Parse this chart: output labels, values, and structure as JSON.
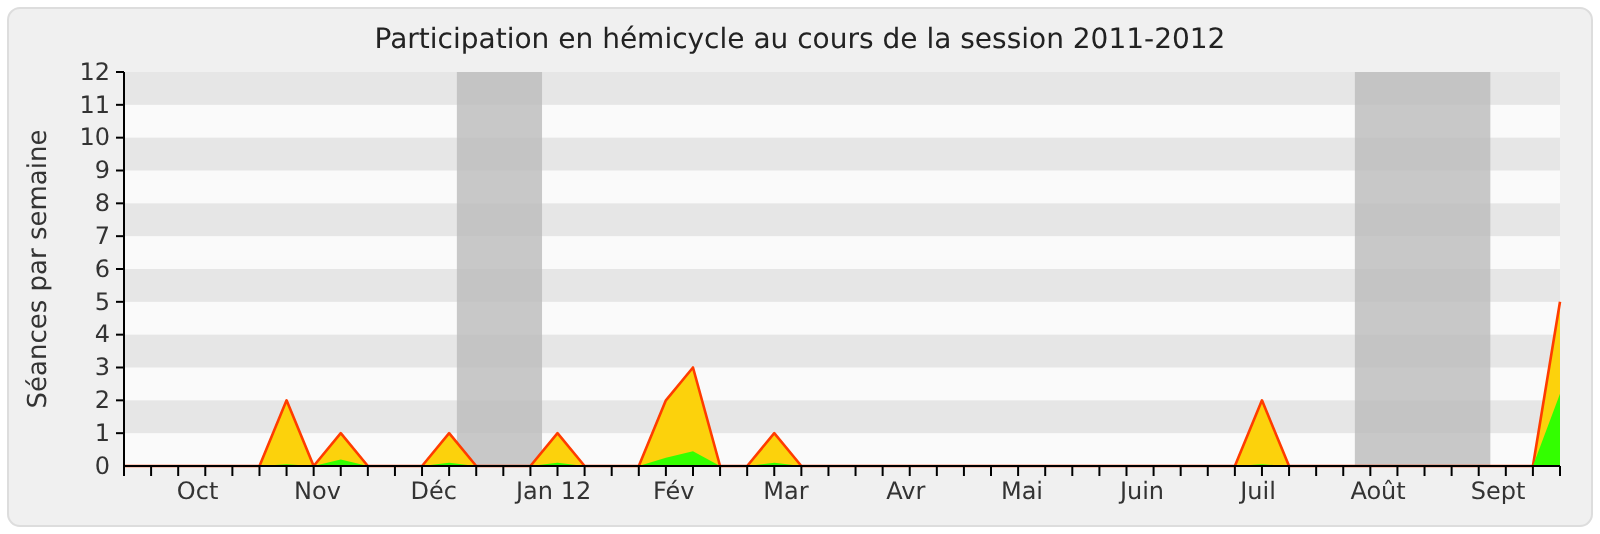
{
  "chart_data": {
    "type": "area",
    "title": "Participation en hémicycle au cours de la session 2011-2012",
    "ylabel": "Séances par semaine",
    "x": [
      "2011-09-26",
      "2011-10-03",
      "2011-10-10",
      "2011-10-17",
      "2011-10-24",
      "2011-10-31",
      "2011-11-07",
      "2011-11-14",
      "2011-11-21",
      "2011-11-28",
      "2011-12-05",
      "2011-12-12",
      "2011-12-19",
      "2011-12-26",
      "2012-01-02",
      "2012-01-09",
      "2012-01-16",
      "2012-01-23",
      "2012-01-30",
      "2012-02-06",
      "2012-02-13",
      "2012-02-20",
      "2012-02-27",
      "2012-03-05",
      "2012-03-12",
      "2012-03-19",
      "2012-03-26",
      "2012-04-02",
      "2012-04-09",
      "2012-04-16",
      "2012-04-23",
      "2012-04-30",
      "2012-05-07",
      "2012-05-14",
      "2012-05-21",
      "2012-05-28",
      "2012-06-04",
      "2012-06-11",
      "2012-06-18",
      "2012-06-25",
      "2012-07-02",
      "2012-07-09",
      "2012-07-16",
      "2012-07-23",
      "2012-07-30",
      "2012-08-06",
      "2012-08-13",
      "2012-08-20",
      "2012-08-27",
      "2012-09-03",
      "2012-09-10",
      "2012-09-17",
      "2012-09-24",
      "2012-10-01"
    ],
    "series": [
      {
        "type": "area",
        "color": "#fcd20c",
        "values": [
          0,
          0,
          0,
          0,
          0,
          0,
          2,
          0,
          1,
          0,
          0,
          0,
          1,
          0,
          0,
          0,
          1,
          0,
          0,
          0,
          2,
          3,
          0,
          0,
          1,
          0,
          0,
          0,
          0,
          0,
          0,
          0,
          0,
          0,
          0,
          0,
          0,
          0,
          0,
          0,
          0,
          0,
          2,
          0,
          0,
          0,
          0,
          0,
          0,
          0,
          0,
          0,
          0,
          5
        ]
      },
      {
        "type": "area",
        "color": "#33ff00",
        "values": [
          0,
          0,
          0,
          0,
          0,
          0,
          0.05,
          0,
          0.2,
          0,
          0,
          0,
          0.1,
          0,
          0,
          0,
          0.1,
          0,
          0,
          0,
          0.25,
          0.45,
          0,
          0,
          0.1,
          0,
          0,
          0,
          0,
          0,
          0,
          0,
          0,
          0,
          0,
          0,
          0,
          0,
          0,
          0,
          0,
          0,
          0.05,
          0,
          0,
          0,
          0,
          0,
          0,
          0,
          0,
          0,
          0,
          2.2
        ]
      }
    ],
    "xlim": [
      "2011-09-26",
      "2012-10-01"
    ],
    "xticks": [
      {
        "value": "2011-10-15",
        "label": "Oct"
      },
      {
        "value": "2011-11-15",
        "label": "Nov"
      },
      {
        "value": "2011-12-15",
        "label": "Déc"
      },
      {
        "value": "2012-01-15",
        "label": "Jan 12"
      },
      {
        "value": "2012-02-15",
        "label": "Fév"
      },
      {
        "value": "2012-03-15",
        "label": "Mar"
      },
      {
        "value": "2012-04-15",
        "label": "Avr"
      },
      {
        "value": "2012-05-15",
        "label": "Mai"
      },
      {
        "value": "2012-06-15",
        "label": "Juin"
      },
      {
        "value": "2012-07-15",
        "label": "Juil"
      },
      {
        "value": "2012-08-15",
        "label": "Août"
      },
      {
        "value": "2012-09-15",
        "label": "Sept"
      },
      {
        "value": "2011-09-26",
        "label": null
      },
      {
        "value": "2011-10-03",
        "label": null
      },
      {
        "value": "2011-10-10",
        "label": null
      },
      {
        "value": "2011-10-17",
        "label": null
      },
      {
        "value": "2011-10-24",
        "label": null
      },
      {
        "value": "2011-10-31",
        "label": null
      },
      {
        "value": "2011-11-07",
        "label": null
      },
      {
        "value": "2011-11-14",
        "label": null
      },
      {
        "value": "2011-11-21",
        "label": null
      },
      {
        "value": "2011-11-28",
        "label": null
      },
      {
        "value": "2011-12-05",
        "label": null
      },
      {
        "value": "2011-12-12",
        "label": null
      },
      {
        "value": "2011-12-19",
        "label": null
      },
      {
        "value": "2011-12-26",
        "label": null
      },
      {
        "value": "2012-01-02",
        "label": null
      },
      {
        "value": "2012-01-09",
        "label": null
      },
      {
        "value": "2012-01-16",
        "label": null
      },
      {
        "value": "2012-01-23",
        "label": null
      },
      {
        "value": "2012-01-30",
        "label": null
      },
      {
        "value": "2012-02-06",
        "label": null
      },
      {
        "value": "2012-02-13",
        "label": null
      },
      {
        "value": "2012-02-20",
        "label": null
      },
      {
        "value": "2012-02-27",
        "label": null
      },
      {
        "value": "2012-03-05",
        "label": null
      },
      {
        "value": "2012-03-12",
        "label": null
      },
      {
        "value": "2012-03-19",
        "label": null
      },
      {
        "value": "2012-03-26",
        "label": null
      },
      {
        "value": "2012-04-02",
        "label": null
      },
      {
        "value": "2012-04-09",
        "label": null
      },
      {
        "value": "2012-04-16",
        "label": null
      },
      {
        "value": "2012-04-23",
        "label": null
      },
      {
        "value": "2012-04-30",
        "label": null
      },
      {
        "value": "2012-05-07",
        "label": null
      },
      {
        "value": "2012-05-14",
        "label": null
      },
      {
        "value": "2012-05-21",
        "label": null
      },
      {
        "value": "2012-05-28",
        "label": null
      },
      {
        "value": "2012-06-04",
        "label": null
      },
      {
        "value": "2012-06-11",
        "label": null
      },
      {
        "value": "2012-06-18",
        "label": null
      },
      {
        "value": "2012-06-25",
        "label": null
      },
      {
        "value": "2012-07-02",
        "label": null
      },
      {
        "value": "2012-07-09",
        "label": null
      },
      {
        "value": "2012-07-16",
        "label": null
      },
      {
        "value": "2012-07-23",
        "label": null
      },
      {
        "value": "2012-07-30",
        "label": null
      },
      {
        "value": "2012-08-06",
        "label": null
      },
      {
        "value": "2012-08-13",
        "label": null
      },
      {
        "value": "2012-08-20",
        "label": null
      },
      {
        "value": "2012-08-27",
        "label": null
      },
      {
        "value": "2012-09-03",
        "label": null
      },
      {
        "value": "2012-09-10",
        "label": null
      },
      {
        "value": "2012-09-17",
        "label": null
      },
      {
        "value": "2012-09-24",
        "label": null
      },
      {
        "value": "2012-10-01",
        "label": null
      }
    ],
    "ylim": [
      0,
      12
    ],
    "yticks": [
      0,
      1,
      2,
      3,
      4,
      5,
      6,
      7,
      8,
      9,
      10,
      11,
      12
    ],
    "bands": [
      {
        "axis": "x",
        "from": "2011-12-21",
        "to": "2012-01-12",
        "color": "#bcbcbc"
      },
      {
        "axis": "x",
        "from": "2012-08-09",
        "to": "2012-09-13",
        "color": "#bcbcbc"
      }
    ],
    "line_style": "solid"
  }
}
